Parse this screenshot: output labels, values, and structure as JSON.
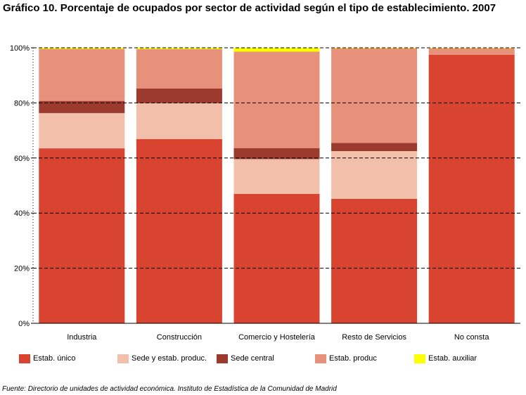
{
  "title": "Gráfico 10. Porcentaje de ocupados por sector de actividad según el tipo de establecimiento. 2007",
  "source": "Fuente: Directorio de unidades de actividad económica. Instituto de Estadística de la Comunidad de Madrid",
  "chart_data": {
    "type": "bar",
    "stacked": true,
    "categories": [
      "Industria",
      "Construcción",
      "Comercio y Hostelería",
      "Resto de Servicios",
      "No consta"
    ],
    "series": [
      {
        "name": "Estab. único",
        "color": "#d94431",
        "values": [
          63.5,
          66.9,
          47.0,
          45.2,
          97.5
        ]
      },
      {
        "name": "Sede y estab. produc.",
        "color": "#f2c0aa",
        "values": [
          12.8,
          13.0,
          12.6,
          17.3,
          0.0
        ]
      },
      {
        "name": "Sede central",
        "color": "#9b3a2d",
        "values": [
          4.4,
          5.3,
          4.0,
          3.0,
          0.0
        ]
      },
      {
        "name": "Estab. produc",
        "color": "#e8917a",
        "values": [
          18.9,
          14.3,
          35.0,
          34.3,
          2.3
        ]
      },
      {
        "name": "Estab. auxiliar",
        "color": "#ffff00",
        "values": [
          0.4,
          0.5,
          1.4,
          0.2,
          0.2
        ]
      }
    ],
    "yticks": [
      "0%",
      "20%",
      "40%",
      "60%",
      "80%",
      "100%"
    ],
    "ylim": [
      0,
      100
    ],
    "grid": true,
    "legend_position": "bottom"
  }
}
